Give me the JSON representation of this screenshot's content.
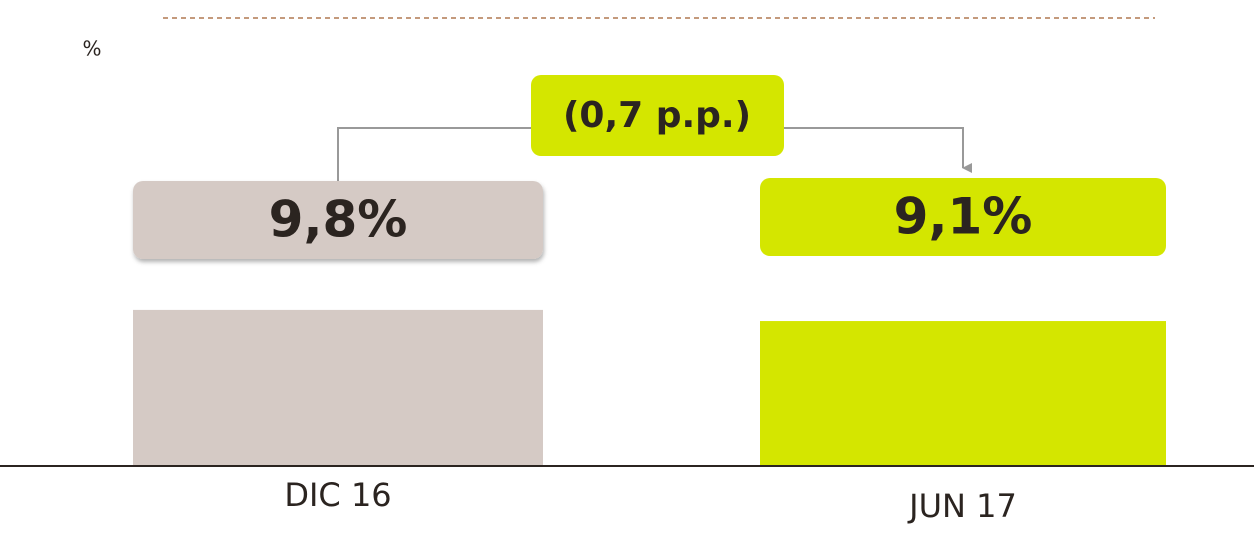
{
  "chart_data": {
    "type": "bar",
    "y_label": "%",
    "annotation": "(0,7 p.p.)",
    "categories": [
      "DIC 16",
      "JUN 17"
    ],
    "values": [
      9.8,
      9.1
    ],
    "value_labels": [
      "9,8%",
      "9,1%"
    ],
    "colors": [
      "#d5cac5",
      "#d4e600"
    ],
    "ylim": [
      0,
      28
    ]
  }
}
